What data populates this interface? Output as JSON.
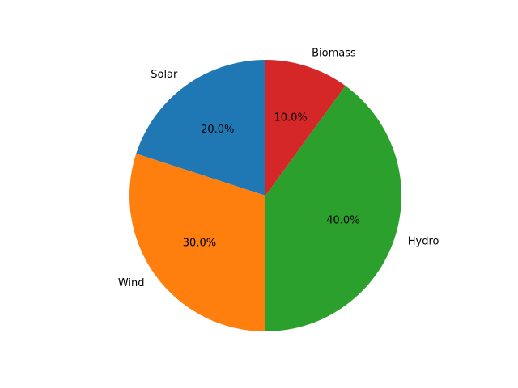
{
  "chart_data": {
    "type": "pie",
    "categories": [
      "Solar",
      "Wind",
      "Hydro",
      "Biomass"
    ],
    "values": [
      20,
      30,
      40,
      10
    ],
    "percent_labels": [
      "20.0%",
      "30.0%",
      "40.0%",
      "10.0%"
    ],
    "colors": [
      "#1f77b4",
      "#ff7f0e",
      "#2ca02c",
      "#d62728"
    ],
    "start_angle_deg": 90,
    "direction": "counterclockwise"
  }
}
